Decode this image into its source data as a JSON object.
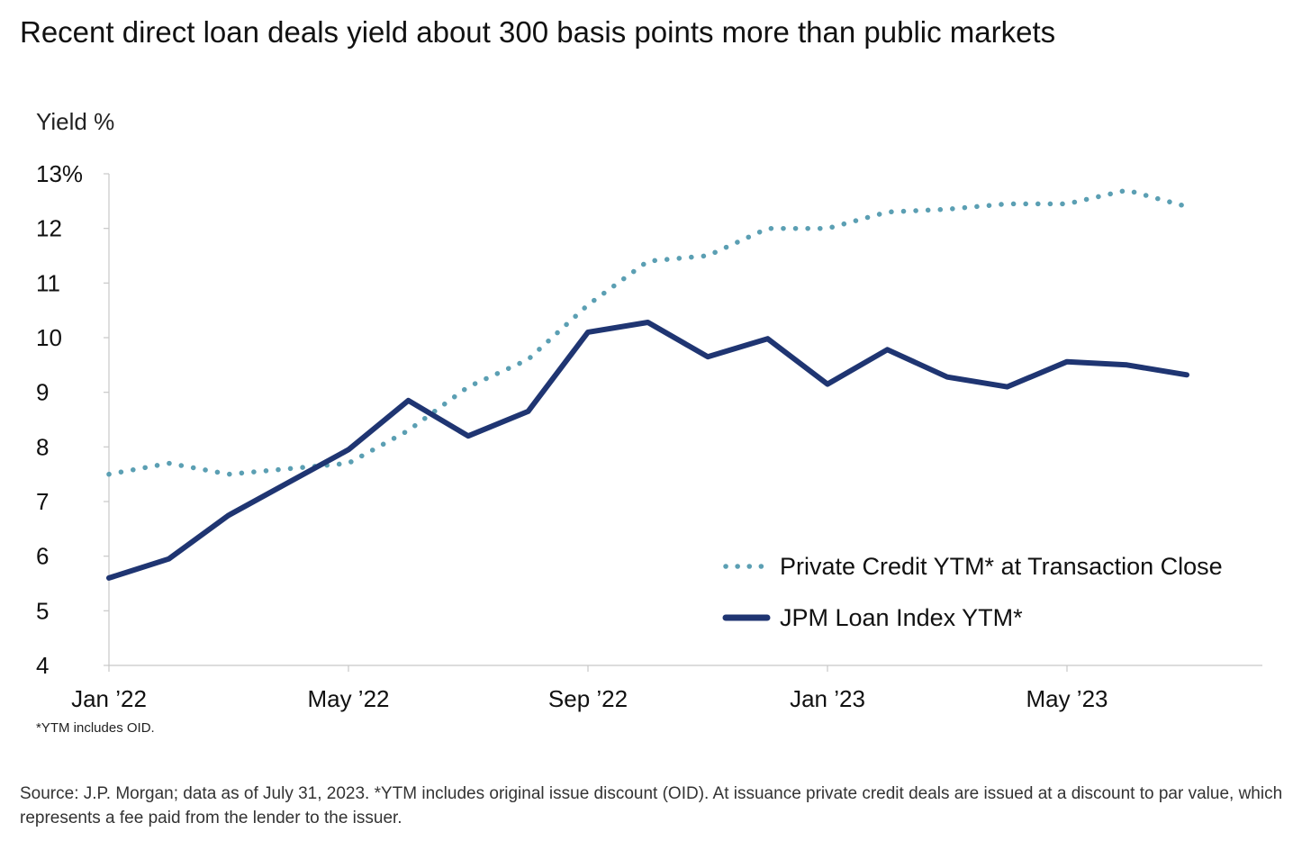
{
  "chart_data": {
    "type": "line",
    "title": "Recent direct loan deals yield about 300 basis points more than public markets",
    "ylabel": "Yield %",
    "xlabel": "",
    "ylim": [
      4,
      13
    ],
    "y_ticks": [
      {
        "value": 13,
        "label": "13%"
      },
      {
        "value": 12,
        "label": "12"
      },
      {
        "value": 11,
        "label": "11"
      },
      {
        "value": 10,
        "label": "10"
      },
      {
        "value": 9,
        "label": "9"
      },
      {
        "value": 8,
        "label": "8"
      },
      {
        "value": 7,
        "label": "7"
      },
      {
        "value": 6,
        "label": "6"
      },
      {
        "value": 5,
        "label": "5"
      },
      {
        "value": 4,
        "label": "4"
      }
    ],
    "x_ticks": [
      "Jan ’22",
      "May ’22",
      "Sep ’22",
      "Jan ’23",
      "May ’23"
    ],
    "x": [
      "2022-01",
      "2022-02",
      "2022-03",
      "2022-04",
      "2022-05",
      "2022-06",
      "2022-07",
      "2022-08",
      "2022-09",
      "2022-10",
      "2022-11",
      "2022-12",
      "2023-01",
      "2023-02",
      "2023-03",
      "2023-04",
      "2023-05",
      "2023-06",
      "2023-07"
    ],
    "grid": false,
    "legend_position": "bottom-right",
    "series": [
      {
        "name": "Private Credit YTM* at Transaction Close",
        "style": "dotted",
        "color": "#5B9FB3",
        "values": [
          7.5,
          7.7,
          7.5,
          7.6,
          7.7,
          8.3,
          9.1,
          9.6,
          10.6,
          11.4,
          11.5,
          12.0,
          12.0,
          12.3,
          12.35,
          12.45,
          12.45,
          12.7,
          12.4
        ]
      },
      {
        "name": "JPM Loan Index YTM*",
        "style": "solid",
        "color": "#1F3572",
        "values": [
          5.6,
          5.95,
          6.75,
          7.35,
          7.95,
          8.85,
          8.2,
          8.65,
          10.1,
          10.28,
          9.65,
          9.98,
          9.15,
          9.78,
          9.28,
          9.1,
          9.56,
          9.5,
          9.32
        ]
      }
    ]
  },
  "footnote": "*YTM includes OID.",
  "source": "Source: J.P. Morgan; data as of July 31, 2023. *YTM includes original issue discount (OID).  At issuance private credit deals are issued at a discount to par value, which represents a fee paid from the lender to the issuer."
}
